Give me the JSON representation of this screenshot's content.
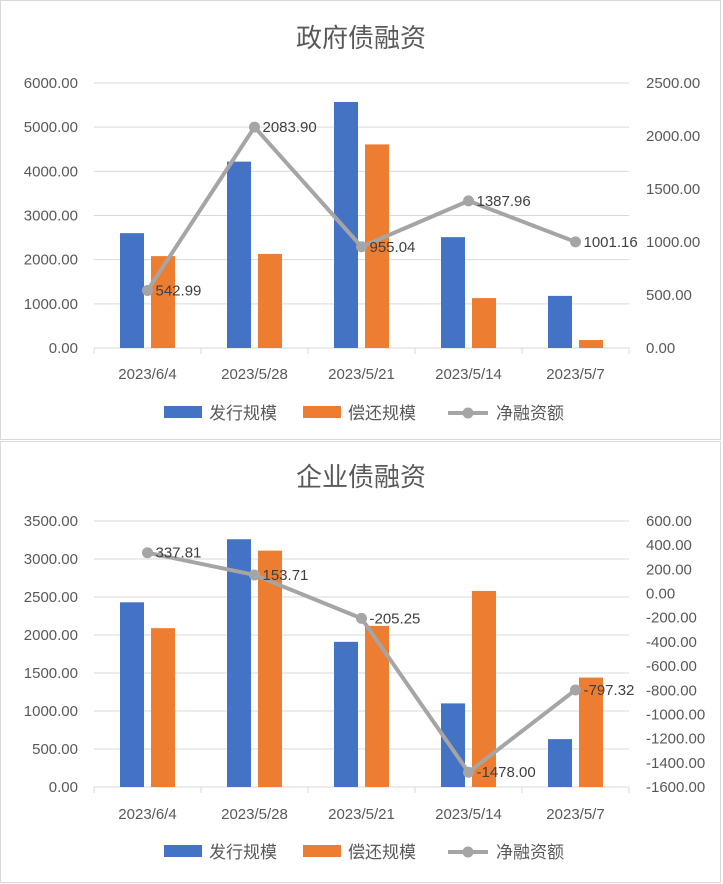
{
  "chart_data": [
    {
      "type": "bar",
      "title": "政府债融资",
      "categories": [
        "2023/6/4",
        "2023/5/28",
        "2023/5/21",
        "2023/5/14",
        "2023/5/7"
      ],
      "series": [
        {
          "name": "发行规模",
          "type": "bar",
          "axis": "left",
          "color": "#4472C4",
          "values": [
            2600,
            4220,
            5570,
            2510,
            1180
          ]
        },
        {
          "name": "偿还规模",
          "type": "bar",
          "axis": "left",
          "color": "#ED7D31",
          "values": [
            2080,
            2130,
            4610,
            1130,
            180
          ]
        },
        {
          "name": "净融资额",
          "type": "line",
          "axis": "right",
          "color": "#A5A5A5",
          "values": [
            542.99,
            2083.9,
            955.04,
            1387.96,
            1001.16
          ],
          "labels": [
            "542.99",
            "2083.90",
            "955.04",
            "1387.96",
            "1001.16"
          ]
        }
      ],
      "left_axis": {
        "min": 0,
        "max": 6000,
        "step": 1000,
        "ticks": [
          "0.00",
          "1000.00",
          "2000.00",
          "3000.00",
          "4000.00",
          "5000.00",
          "6000.00"
        ]
      },
      "right_axis": {
        "min": 0,
        "max": 2500,
        "step": 500,
        "ticks": [
          "0.00",
          "500.00",
          "1000.00",
          "1500.00",
          "2000.00",
          "2500.00"
        ]
      },
      "grid": true,
      "legend_position": "bottom"
    },
    {
      "type": "bar",
      "title": "企业债融资",
      "categories": [
        "2023/6/4",
        "2023/5/28",
        "2023/5/21",
        "2023/5/14",
        "2023/5/7"
      ],
      "series": [
        {
          "name": "发行规模",
          "type": "bar",
          "axis": "left",
          "color": "#4472C4",
          "values": [
            2430,
            3260,
            1910,
            1100,
            630
          ]
        },
        {
          "name": "偿还规模",
          "type": "bar",
          "axis": "left",
          "color": "#ED7D31",
          "values": [
            2090,
            3110,
            2120,
            2580,
            1440
          ]
        },
        {
          "name": "净融资额",
          "type": "line",
          "axis": "right",
          "color": "#A5A5A5",
          "values": [
            337.81,
            153.71,
            -205.25,
            -1478.0,
            -797.32
          ],
          "labels": [
            "337.81",
            "153.71",
            "-205.25",
            "-1478.00",
            "-797.32"
          ]
        }
      ],
      "left_axis": {
        "min": 0,
        "max": 3500,
        "step": 500,
        "ticks": [
          "0.00",
          "500.00",
          "1000.00",
          "1500.00",
          "2000.00",
          "2500.00",
          "3000.00",
          "3500.00"
        ]
      },
      "right_axis": {
        "min": -1600,
        "max": 600,
        "step": 200,
        "ticks": [
          "-1600.00",
          "-1400.00",
          "-1200.00",
          "-1000.00",
          "-800.00",
          "-600.00",
          "-400.00",
          "-200.00",
          "0.00",
          "200.00",
          "400.00",
          "600.00"
        ]
      },
      "grid": true,
      "legend_position": "bottom"
    }
  ]
}
